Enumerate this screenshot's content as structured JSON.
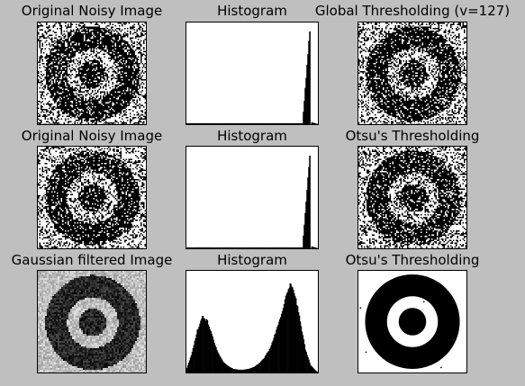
{
  "figure": {
    "background": "#bfbfbf",
    "panels": [
      {
        "title": "Original Noisy Image",
        "kind": "image",
        "variant": "noisy"
      },
      {
        "title": "Histogram",
        "kind": "histogram",
        "variant": "noisy"
      },
      {
        "title": "Global Thresholding (v=127)",
        "kind": "image",
        "variant": "binary-noisy"
      },
      {
        "title": "Original Noisy Image",
        "kind": "image",
        "variant": "noisy"
      },
      {
        "title": "Histogram",
        "kind": "histogram",
        "variant": "noisy"
      },
      {
        "title": "Otsu's Thresholding",
        "kind": "image",
        "variant": "binary-noisy"
      },
      {
        "title": "Gaussian filtered Image",
        "kind": "image",
        "variant": "blurred"
      },
      {
        "title": "Histogram",
        "kind": "histogram",
        "variant": "blurred"
      },
      {
        "title": "Otsu's Thresholding",
        "kind": "image",
        "variant": "binary-clean"
      }
    ]
  },
  "chart_data": [
    {
      "type": "bar",
      "title": "Histogram",
      "description_of_shape": "near-empty except a single tall spike near the high end",
      "x": [
        0,
        32,
        64,
        96,
        128,
        160,
        192,
        224,
        238,
        242,
        255
      ],
      "values": [
        0.01,
        0.01,
        0.01,
        0.01,
        0.01,
        0.01,
        0.01,
        0.01,
        1.0,
        0.02,
        0.0
      ],
      "ylim": [
        0,
        1.0
      ],
      "xlim": [
        0,
        255
      ]
    },
    {
      "type": "bar",
      "title": "Histogram",
      "x": [
        0,
        32,
        64,
        96,
        128,
        160,
        192,
        224,
        238,
        242,
        255
      ],
      "values": [
        0.01,
        0.01,
        0.01,
        0.01,
        0.01,
        0.01,
        0.01,
        0.01,
        1.0,
        0.02,
        0.0
      ],
      "ylim": [
        0,
        1.0
      ],
      "xlim": [
        0,
        255
      ]
    },
    {
      "type": "bar",
      "title": "Histogram",
      "x": [
        0,
        10,
        20,
        30,
        40,
        50,
        60,
        70,
        80,
        90,
        100,
        110,
        120,
        130,
        140,
        150,
        160,
        170,
        180,
        190,
        200,
        210,
        220,
        230,
        240,
        250
      ],
      "values": [
        0.05,
        0.22,
        0.45,
        0.62,
        0.55,
        0.38,
        0.22,
        0.12,
        0.07,
        0.04,
        0.03,
        0.03,
        0.04,
        0.06,
        0.1,
        0.16,
        0.25,
        0.4,
        0.58,
        0.78,
        0.95,
        0.85,
        0.55,
        0.25,
        0.08,
        0.02
      ],
      "ylim": [
        0,
        1.0
      ],
      "xlim": [
        0,
        255
      ]
    }
  ]
}
